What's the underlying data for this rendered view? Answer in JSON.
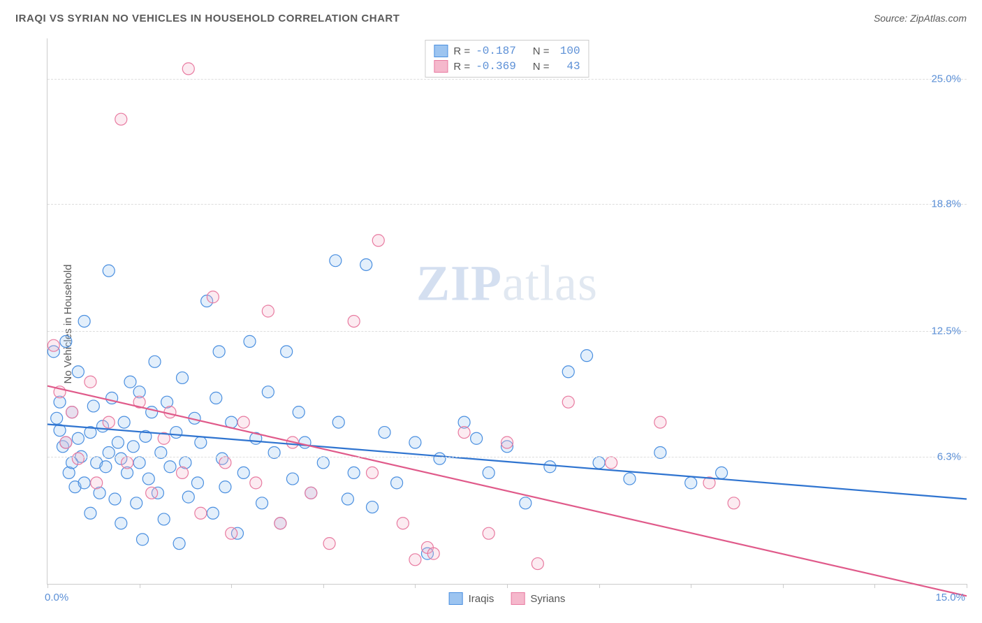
{
  "header": {
    "title": "IRAQI VS SYRIAN NO VEHICLES IN HOUSEHOLD CORRELATION CHART",
    "source_prefix": "Source: ",
    "source": "ZipAtlas.com"
  },
  "watermark": {
    "zip": "ZIP",
    "atlas": "atlas"
  },
  "chart": {
    "type": "scatter",
    "ylabel": "No Vehicles in Household",
    "xlim": [
      0,
      15
    ],
    "ylim": [
      0,
      27
    ],
    "x_ticks": [
      0,
      1.5,
      3,
      4.5,
      6,
      7.5,
      9,
      10.5,
      12,
      13.5,
      15
    ],
    "x_tick_labels_left": "0.0%",
    "x_tick_labels_right": "15.0%",
    "y_gridlines": [
      6.3,
      12.5,
      18.8,
      25.0
    ],
    "y_tick_labels": [
      "6.3%",
      "12.5%",
      "18.8%",
      "25.0%"
    ],
    "background_color": "#ffffff",
    "grid_color": "#dddddd",
    "axis_color": "#cccccc",
    "tick_label_color": "#5b8fd6",
    "marker_radius": 8.5,
    "marker_stroke_width": 1.2,
    "marker_fill_opacity": 0.28,
    "trend_line_width": 2.2,
    "series": [
      {
        "name": "Iraqis",
        "color_stroke": "#4a8fe0",
        "color_fill": "#9cc4f0",
        "trend_color": "#2f74d0",
        "R": "-0.187",
        "N": "100",
        "trend": {
          "x1": 0,
          "y1": 7.9,
          "x2": 15,
          "y2": 4.2
        },
        "points": [
          [
            0.1,
            11.5
          ],
          [
            0.15,
            8.2
          ],
          [
            0.2,
            7.6
          ],
          [
            0.2,
            9.0
          ],
          [
            0.25,
            6.8
          ],
          [
            0.3,
            12.0
          ],
          [
            0.3,
            7.0
          ],
          [
            0.35,
            5.5
          ],
          [
            0.4,
            8.5
          ],
          [
            0.4,
            6.0
          ],
          [
            0.45,
            4.8
          ],
          [
            0.5,
            7.2
          ],
          [
            0.5,
            10.5
          ],
          [
            0.55,
            6.3
          ],
          [
            0.6,
            13.0
          ],
          [
            0.6,
            5.0
          ],
          [
            0.7,
            7.5
          ],
          [
            0.7,
            3.5
          ],
          [
            0.75,
            8.8
          ],
          [
            0.8,
            6.0
          ],
          [
            0.85,
            4.5
          ],
          [
            0.9,
            7.8
          ],
          [
            0.95,
            5.8
          ],
          [
            1.0,
            15.5
          ],
          [
            1.0,
            6.5
          ],
          [
            1.05,
            9.2
          ],
          [
            1.1,
            4.2
          ],
          [
            1.15,
            7.0
          ],
          [
            1.2,
            6.2
          ],
          [
            1.2,
            3.0
          ],
          [
            1.25,
            8.0
          ],
          [
            1.3,
            5.5
          ],
          [
            1.35,
            10.0
          ],
          [
            1.4,
            6.8
          ],
          [
            1.45,
            4.0
          ],
          [
            1.5,
            9.5
          ],
          [
            1.5,
            6.0
          ],
          [
            1.55,
            2.2
          ],
          [
            1.6,
            7.3
          ],
          [
            1.65,
            5.2
          ],
          [
            1.7,
            8.5
          ],
          [
            1.75,
            11.0
          ],
          [
            1.8,
            4.5
          ],
          [
            1.85,
            6.5
          ],
          [
            1.9,
            3.2
          ],
          [
            1.95,
            9.0
          ],
          [
            2.0,
            5.8
          ],
          [
            2.1,
            7.5
          ],
          [
            2.15,
            2.0
          ],
          [
            2.2,
            10.2
          ],
          [
            2.25,
            6.0
          ],
          [
            2.3,
            4.3
          ],
          [
            2.4,
            8.2
          ],
          [
            2.45,
            5.0
          ],
          [
            2.5,
            7.0
          ],
          [
            2.6,
            14.0
          ],
          [
            2.7,
            3.5
          ],
          [
            2.75,
            9.2
          ],
          [
            2.8,
            11.5
          ],
          [
            2.85,
            6.2
          ],
          [
            2.9,
            4.8
          ],
          [
            3.0,
            8.0
          ],
          [
            3.1,
            2.5
          ],
          [
            3.2,
            5.5
          ],
          [
            3.3,
            12.0
          ],
          [
            3.4,
            7.2
          ],
          [
            3.5,
            4.0
          ],
          [
            3.6,
            9.5
          ],
          [
            3.7,
            6.5
          ],
          [
            3.8,
            3.0
          ],
          [
            3.9,
            11.5
          ],
          [
            4.0,
            5.2
          ],
          [
            4.1,
            8.5
          ],
          [
            4.2,
            7.0
          ],
          [
            4.3,
            4.5
          ],
          [
            4.5,
            6.0
          ],
          [
            4.7,
            16.0
          ],
          [
            4.75,
            8.0
          ],
          [
            4.9,
            4.2
          ],
          [
            5.0,
            5.5
          ],
          [
            5.2,
            15.8
          ],
          [
            5.3,
            3.8
          ],
          [
            5.5,
            7.5
          ],
          [
            5.7,
            5.0
          ],
          [
            6.0,
            7.0
          ],
          [
            6.2,
            1.5
          ],
          [
            6.4,
            6.2
          ],
          [
            6.8,
            8.0
          ],
          [
            7.0,
            7.2
          ],
          [
            7.2,
            5.5
          ],
          [
            7.5,
            6.8
          ],
          [
            7.8,
            4.0
          ],
          [
            8.2,
            5.8
          ],
          [
            8.5,
            10.5
          ],
          [
            8.8,
            11.3
          ],
          [
            9.0,
            6.0
          ],
          [
            9.5,
            5.2
          ],
          [
            10.0,
            6.5
          ],
          [
            10.5,
            5.0
          ],
          [
            11.0,
            5.5
          ]
        ]
      },
      {
        "name": "Syrians",
        "color_stroke": "#e87aa0",
        "color_fill": "#f5b8cc",
        "trend_color": "#e05a8a",
        "R": "-0.369",
        "N": "43",
        "trend": {
          "x1": 0,
          "y1": 9.8,
          "x2": 15,
          "y2": -0.6
        },
        "points": [
          [
            0.1,
            11.8
          ],
          [
            0.2,
            9.5
          ],
          [
            0.3,
            7.0
          ],
          [
            0.4,
            8.5
          ],
          [
            0.5,
            6.2
          ],
          [
            0.7,
            10.0
          ],
          [
            0.8,
            5.0
          ],
          [
            1.0,
            8.0
          ],
          [
            1.2,
            23.0
          ],
          [
            1.3,
            6.0
          ],
          [
            1.5,
            9.0
          ],
          [
            1.7,
            4.5
          ],
          [
            1.9,
            7.2
          ],
          [
            2.0,
            8.5
          ],
          [
            2.2,
            5.5
          ],
          [
            2.3,
            25.5
          ],
          [
            2.5,
            3.5
          ],
          [
            2.7,
            14.2
          ],
          [
            2.9,
            6.0
          ],
          [
            3.0,
            2.5
          ],
          [
            3.2,
            8.0
          ],
          [
            3.4,
            5.0
          ],
          [
            3.6,
            13.5
          ],
          [
            3.8,
            3.0
          ],
          [
            4.0,
            7.0
          ],
          [
            4.3,
            4.5
          ],
          [
            4.6,
            2.0
          ],
          [
            5.0,
            13.0
          ],
          [
            5.3,
            5.5
          ],
          [
            5.4,
            17.0
          ],
          [
            5.8,
            3.0
          ],
          [
            6.0,
            1.2
          ],
          [
            6.2,
            1.8
          ],
          [
            6.3,
            1.5
          ],
          [
            6.8,
            7.5
          ],
          [
            7.2,
            2.5
          ],
          [
            7.5,
            7.0
          ],
          [
            8.0,
            1.0
          ],
          [
            8.5,
            9.0
          ],
          [
            9.2,
            6.0
          ],
          [
            10.0,
            8.0
          ],
          [
            10.8,
            5.0
          ],
          [
            11.2,
            4.0
          ]
        ]
      }
    ],
    "legend_top": {
      "r_label": "R =",
      "n_label": "N ="
    },
    "legend_bottom_labels": [
      "Iraqis",
      "Syrians"
    ]
  }
}
